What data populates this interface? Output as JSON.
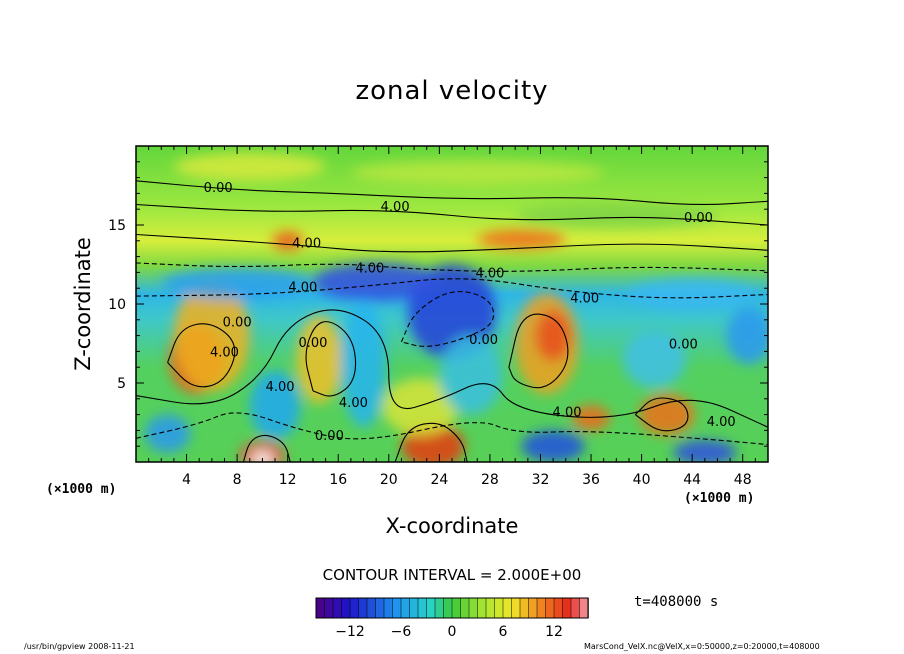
{
  "chart_data": {
    "type": "heatmap",
    "title": "zonal velocity",
    "xlabel": "X-coordinate",
    "ylabel": "Z-coordinate",
    "x_unit": "(×1000 m)",
    "xlim": [
      0,
      50
    ],
    "ylim": [
      0,
      20
    ],
    "x_ticks": [
      4,
      8,
      12,
      16,
      20,
      24,
      28,
      32,
      36,
      40,
      44,
      48
    ],
    "y_ticks": [
      5,
      10,
      15
    ],
    "contour_interval": "CONTOUR INTERVAL = 2.000E+00",
    "contour_labels": [
      {
        "text": "0.00",
        "x": 6.5,
        "y": 17.4
      },
      {
        "text": "4.00",
        "x": 20.5,
        "y": 16.2
      },
      {
        "text": "0.00",
        "x": 44.5,
        "y": 15.5
      },
      {
        "text": "4.00",
        "x": 13.5,
        "y": 13.9
      },
      {
        "text": "4.00",
        "x": 18.5,
        "y": 12.3
      },
      {
        "text": "4.00",
        "x": 28.0,
        "y": 12.0
      },
      {
        "text": "4.00",
        "x": 13.2,
        "y": 11.1
      },
      {
        "text": "4.00",
        "x": 35.5,
        "y": 10.4
      },
      {
        "text": "0.00",
        "x": 8.0,
        "y": 8.9
      },
      {
        "text": "4.00",
        "x": 7.0,
        "y": 7.0
      },
      {
        "text": "0.00",
        "x": 14.0,
        "y": 7.6
      },
      {
        "text": "0.00",
        "x": 27.5,
        "y": 7.8
      },
      {
        "text": "0.00",
        "x": 43.3,
        "y": 7.5
      },
      {
        "text": "4.00",
        "x": 11.4,
        "y": 4.8
      },
      {
        "text": "4.00",
        "x": 17.2,
        "y": 3.8
      },
      {
        "text": "0.00",
        "x": 15.3,
        "y": 1.7
      },
      {
        "text": "4.00",
        "x": 34.1,
        "y": 3.2
      },
      {
        "text": "4.00",
        "x": 46.3,
        "y": 2.6
      }
    ],
    "colorbar": {
      "tick_labels": [
        "−12",
        "−6",
        "0",
        "6",
        "12"
      ],
      "tick_values": [
        -12,
        -6,
        0,
        6,
        12
      ],
      "range": [
        -16,
        16
      ]
    },
    "time_label": "t=408000 s"
  },
  "footer": {
    "left": "/usr/bin/gpview   2008-11-21",
    "right": "MarsCond_VelX.nc@VelX,x=0:50000,z=0:20000,t=408000"
  }
}
